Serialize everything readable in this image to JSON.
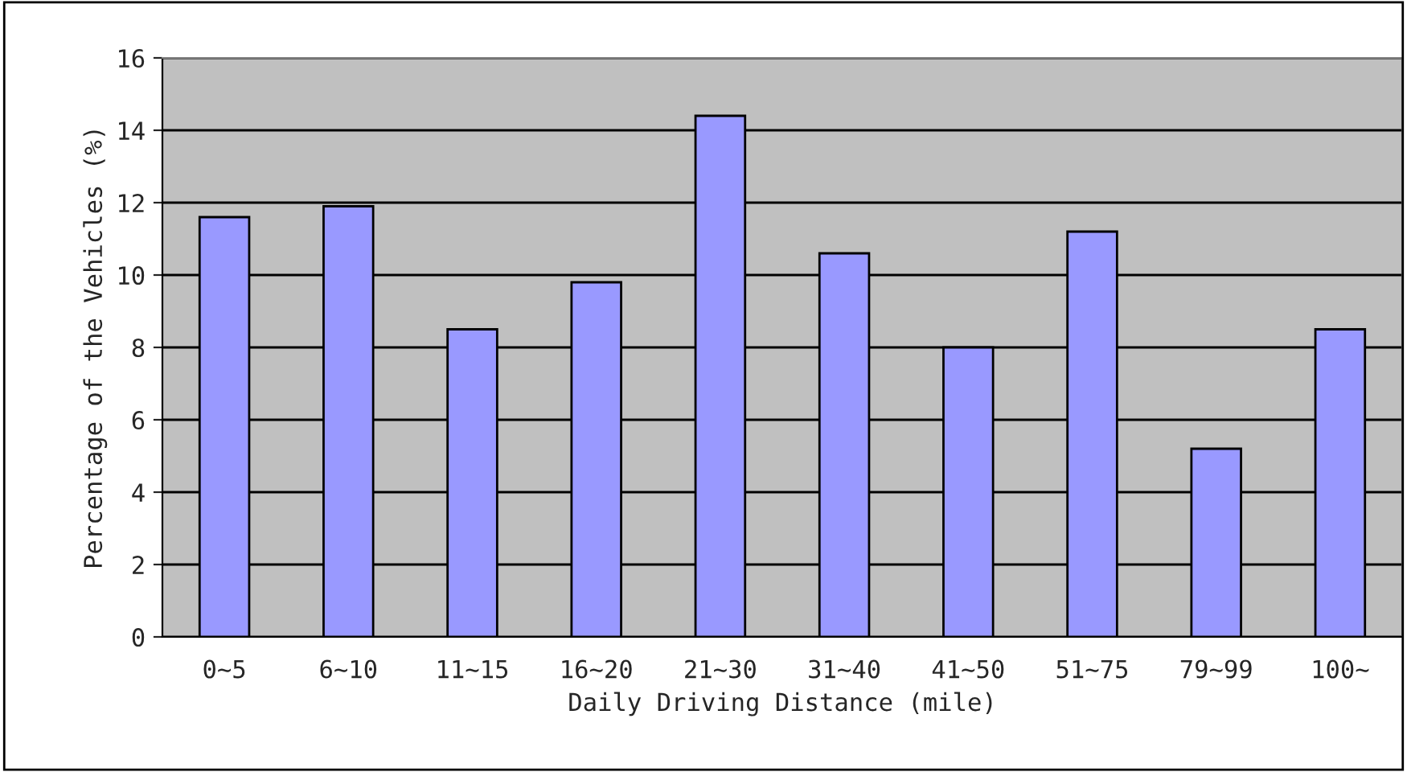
{
  "chart_data": {
    "type": "bar",
    "xlabel": "Daily Driving Distance (mile)",
    "ylabel": "Percentage of the Vehicles (%)",
    "categories": [
      "0~5",
      "6~10",
      "11~15",
      "16~20",
      "21~30",
      "31~40",
      "41~50",
      "51~75",
      "79~99",
      "100~"
    ],
    "values": [
      11.6,
      11.9,
      8.5,
      9.8,
      14.4,
      10.6,
      8.0,
      11.2,
      5.2,
      8.5
    ],
    "color": "#9999ff",
    "ylim": [
      0,
      16
    ],
    "yticks": [
      0,
      2,
      4,
      6,
      8,
      10,
      12,
      14,
      16
    ],
    "grid": "y"
  }
}
